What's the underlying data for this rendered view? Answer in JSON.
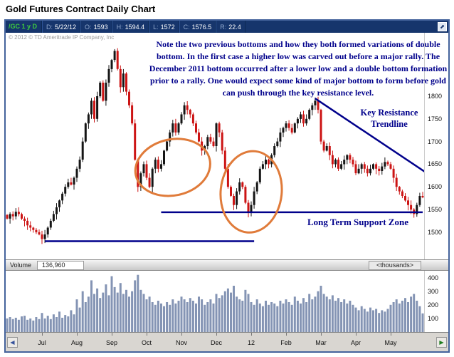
{
  "page": {
    "title": "Gold Futures Contract Daily Chart"
  },
  "toolbar": {
    "symbol": "/GC 1 y D",
    "fields": [
      {
        "label": "D:",
        "value": "5/22/12"
      },
      {
        "label": "O:",
        "value": "1593"
      },
      {
        "label": "H:",
        "value": "1594.4"
      },
      {
        "label": "L:",
        "value": "1572"
      },
      {
        "label": "C:",
        "value": "1576.5"
      },
      {
        "label": "R:",
        "value": "22.4"
      }
    ]
  },
  "copyright": "© 2012 © TD Ameritrade IP Company, Inc",
  "annotations": {
    "note": "Note the two previous bottoms and how they both formed variations of double bottom. In the first case a higher low was carved out before a major rally. The December 2011 bottom occurred after a lower low and a double bottom formation prior to a rally. One would expect some kind of major bottom to form before gold can push through the key resistance level.",
    "resistance_label": "Key Resistance Trendline",
    "support_label": "Long Term Support Zone"
  },
  "volume_panel": {
    "label": "Volume",
    "value": "136,960",
    "units": "<thousands>"
  },
  "chart_data": {
    "type": "candlestick",
    "title": "Gold Futures Contract Daily Chart",
    "price_axis": {
      "min": 1440,
      "max": 1940,
      "ticks": [
        1500,
        1550,
        1600,
        1650,
        1700,
        1750,
        1800
      ]
    },
    "volume_axis": {
      "max": 450,
      "ticks": [
        100,
        200,
        300,
        400
      ]
    },
    "x_axis": {
      "month_starts": [
        {
          "label": "Jul",
          "index": 12
        },
        {
          "label": "Aug",
          "index": 24
        },
        {
          "label": "Sep",
          "index": 36
        },
        {
          "label": "Oct",
          "index": 48
        },
        {
          "label": "Nov",
          "index": 60
        },
        {
          "label": "Dec",
          "index": 72
        },
        {
          "label": "12",
          "index": 84
        },
        {
          "label": "Feb",
          "index": 96
        },
        {
          "label": "Mar",
          "index": 108
        },
        {
          "label": "Apr",
          "index": 120
        },
        {
          "label": "May",
          "index": 132
        }
      ]
    },
    "closes": [
      1530,
      1540,
      1535,
      1545,
      1540,
      1530,
      1525,
      1515,
      1510,
      1505,
      1500,
      1495,
      1485,
      1495,
      1510,
      1525,
      1540,
      1555,
      1570,
      1585,
      1600,
      1610,
      1605,
      1620,
      1640,
      1660,
      1700,
      1740,
      1760,
      1790,
      1750,
      1800,
      1830,
      1790,
      1830,
      1860,
      1880,
      1900,
      1860,
      1820,
      1850,
      1810,
      1780,
      1740,
      1660,
      1600,
      1630,
      1650,
      1620,
      1600,
      1640,
      1660,
      1640,
      1650,
      1680,
      1700,
      1720,
      1740,
      1720,
      1740,
      1760,
      1780,
      1770,
      1760,
      1740,
      1720,
      1700,
      1680,
      1690,
      1710,
      1700,
      1690,
      1740,
      1720,
      1680,
      1640,
      1600,
      1580,
      1560,
      1590,
      1610,
      1600,
      1565,
      1545,
      1560,
      1590,
      1610,
      1640,
      1650,
      1660,
      1650,
      1670,
      1690,
      1700,
      1720,
      1730,
      1740,
      1730,
      1720,
      1740,
      1750,
      1760,
      1740,
      1750,
      1770,
      1780,
      1790,
      1770,
      1700,
      1680,
      1690,
      1670,
      1650,
      1660,
      1640,
      1650,
      1660,
      1670,
      1660,
      1650,
      1630,
      1640,
      1650,
      1640,
      1630,
      1640,
      1650,
      1640,
      1635,
      1645,
      1655,
      1650,
      1640,
      1620,
      1600,
      1590,
      1580,
      1570,
      1560,
      1550,
      1540,
      1560,
      1580,
      1577
    ],
    "volumes": [
      100,
      110,
      95,
      105,
      90,
      115,
      120,
      90,
      100,
      85,
      110,
      95,
      140,
      100,
      120,
      95,
      130,
      110,
      150,
      105,
      125,
      115,
      160,
      130,
      240,
      180,
      300,
      220,
      260,
      380,
      280,
      320,
      250,
      290,
      350,
      270,
      410,
      330,
      290,
      360,
      280,
      310,
      260,
      300,
      380,
      420,
      310,
      280,
      240,
      260,
      220,
      200,
      230,
      210,
      190,
      220,
      200,
      240,
      210,
      230,
      260,
      240,
      220,
      250,
      230,
      210,
      260,
      240,
      200,
      220,
      240,
      210,
      280,
      250,
      270,
      300,
      320,
      290,
      340,
      260,
      240,
      230,
      310,
      280,
      220,
      200,
      240,
      210,
      190,
      230,
      200,
      220,
      210,
      190,
      230,
      210,
      240,
      220,
      200,
      260,
      230,
      210,
      250,
      220,
      280,
      240,
      260,
      300,
      340,
      280,
      260,
      240,
      270,
      230,
      250,
      220,
      240,
      210,
      230,
      200,
      180,
      160,
      190,
      170,
      150,
      180,
      160,
      170,
      140,
      160,
      150,
      170,
      200,
      220,
      240,
      210,
      230,
      250,
      220,
      260,
      280,
      230,
      190,
      137
    ],
    "overlays": {
      "line_color": "#00008b",
      "ellipse_color": "#e07b3a",
      "support_lines": [
        {
          "price": 1480,
          "from_index": 13,
          "to_index": 85
        },
        {
          "price": 1544,
          "from_index": 53,
          "to_index": 143
        }
      ],
      "trendline": {
        "from": [
          106,
          1795
        ],
        "to": [
          145,
          1628
        ]
      },
      "ellipses": [
        {
          "center_index": 57,
          "center_price": 1643,
          "rx_index": 13,
          "ry_price": 62,
          "rotate": -12
        },
        {
          "center_index": 84,
          "center_price": 1589,
          "rx_index": 10.5,
          "ry_price": 90,
          "rotate": 6
        }
      ]
    },
    "colors": {
      "up": "#151515",
      "down": "#cc1414",
      "volume": "#8494b4"
    }
  }
}
